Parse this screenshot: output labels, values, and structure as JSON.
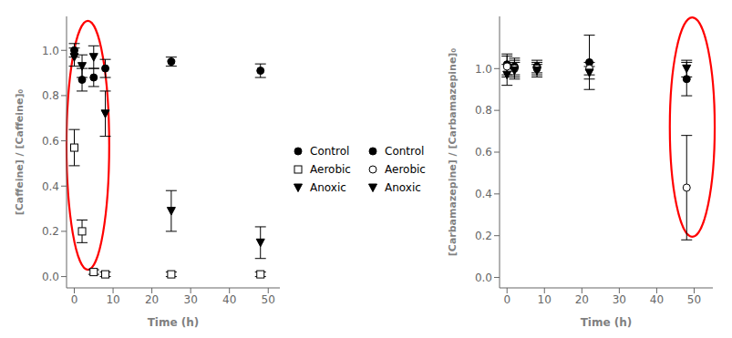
{
  "chart_data": [
    {
      "type": "scatter",
      "xlabel": "Time (h)",
      "ylabel": "[Caffeine] / [Caffeine]₀",
      "xlim": [
        -2,
        53
      ],
      "ylim": [
        -0.05,
        1.15
      ],
      "xticks": [
        0,
        10,
        20,
        30,
        40,
        50
      ],
      "yticks": [
        {
          "value": 0.0,
          "label": "0.0"
        },
        0.2,
        0.4,
        0.6,
        0.8,
        {
          "value": 1.0,
          "label": "1.0"
        }
      ],
      "grid": false,
      "legend": "right",
      "x": [
        0,
        2,
        5,
        8,
        25,
        48
      ],
      "series": [
        {
          "name": "Control",
          "marker": "filled_circle",
          "values": [
            1.0,
            0.87,
            0.88,
            0.92,
            0.95,
            0.91
          ],
          "errors": [
            0.03,
            0.05,
            0.04,
            0.04,
            0.02,
            0.03
          ]
        },
        {
          "name": "Aerobic",
          "marker": "open_square",
          "values": [
            0.57,
            0.2,
            0.02,
            0.01,
            0.01,
            0.01
          ],
          "errors": [
            0.08,
            0.05,
            0.01,
            0.01,
            0.01,
            0.01
          ]
        },
        {
          "name": "Anoxic",
          "marker": "filled_triangle_down",
          "values": [
            0.97,
            0.93,
            0.97,
            0.72,
            0.29,
            0.15
          ],
          "errors": [
            0.04,
            0.05,
            0.05,
            0.1,
            0.09,
            0.07
          ]
        }
      ],
      "ellipse": {
        "cx": 3.5,
        "cy": 0.58,
        "width": 11,
        "height": 1.1,
        "color": "red"
      }
    },
    {
      "type": "scatter",
      "xlabel": "Time (h)",
      "ylabel": "[Carbamazepine] / [Carbamazepine]₀",
      "xlim": [
        -2,
        55
      ],
      "ylim": [
        -0.05,
        1.25
      ],
      "xticks": [
        0,
        10,
        20,
        30,
        40,
        50
      ],
      "yticks": [
        {
          "value": 0.0,
          "label": "0.0"
        },
        0.2,
        0.4,
        0.6,
        0.8,
        {
          "value": 1.0,
          "label": "1.0"
        }
      ],
      "grid": false,
      "legend": "left",
      "x": [
        0,
        2,
        8,
        22,
        48
      ],
      "series": [
        {
          "name": "Control",
          "marker": "filled_circle",
          "values": [
            1.02,
            1.01,
            1.01,
            1.03,
            0.95
          ],
          "errors": [
            0.05,
            0.04,
            0.03,
            0.13,
            0.08
          ]
        },
        {
          "name": "Aerobic",
          "marker": "open_circle",
          "values": [
            1.01,
            1.0,
            1.0,
            1.0,
            0.43
          ],
          "errors": [
            0.05,
            0.04,
            0.03,
            0.03,
            0.25
          ]
        },
        {
          "name": "Anoxic",
          "marker": "filled_triangle_down",
          "values": [
            0.97,
            0.99,
            0.99,
            0.98,
            1.0
          ],
          "errors": [
            0.05,
            0.04,
            0.03,
            0.03,
            0.04
          ]
        }
      ],
      "ellipse": {
        "cx": 49.5,
        "cy": 0.72,
        "width": 12,
        "height": 1.05,
        "color": "red"
      }
    }
  ]
}
